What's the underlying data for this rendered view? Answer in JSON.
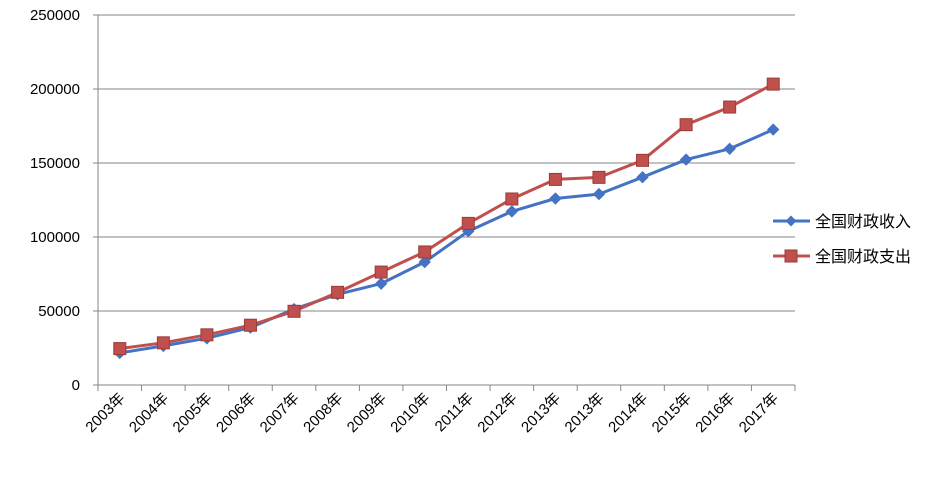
{
  "chart_data": {
    "type": "line",
    "title": "",
    "xlabel": "",
    "ylabel": "",
    "ylim": [
      0,
      250000
    ],
    "yticks": [
      "0",
      "50000",
      "100000",
      "150000",
      "200000",
      "250000"
    ],
    "grid": true,
    "legend_position": "right",
    "categories": [
      "2003年",
      "2004年",
      "2005年",
      "2006年",
      "2007年",
      "2008年",
      "2009年",
      "2010年",
      "2011年",
      "2012年",
      "2013年",
      "2013年",
      "2014年",
      "2015年",
      "2016年",
      "2017年"
    ],
    "series": [
      {
        "name": "全国财政收入",
        "color": "#4472C4",
        "marker": "diamond",
        "values": [
          21700,
          26400,
          31600,
          38800,
          51300,
          61300,
          68500,
          83100,
          103900,
          117300,
          126000,
          129000,
          140400,
          152300,
          159600,
          172600
        ]
      },
      {
        "name": "全国财政支出",
        "color": "#C0504D",
        "marker": "square",
        "values": [
          24600,
          28500,
          33900,
          40400,
          49800,
          62600,
          76300,
          89900,
          109200,
          125700,
          138900,
          140300,
          151800,
          175900,
          187800,
          203300
        ]
      }
    ]
  }
}
